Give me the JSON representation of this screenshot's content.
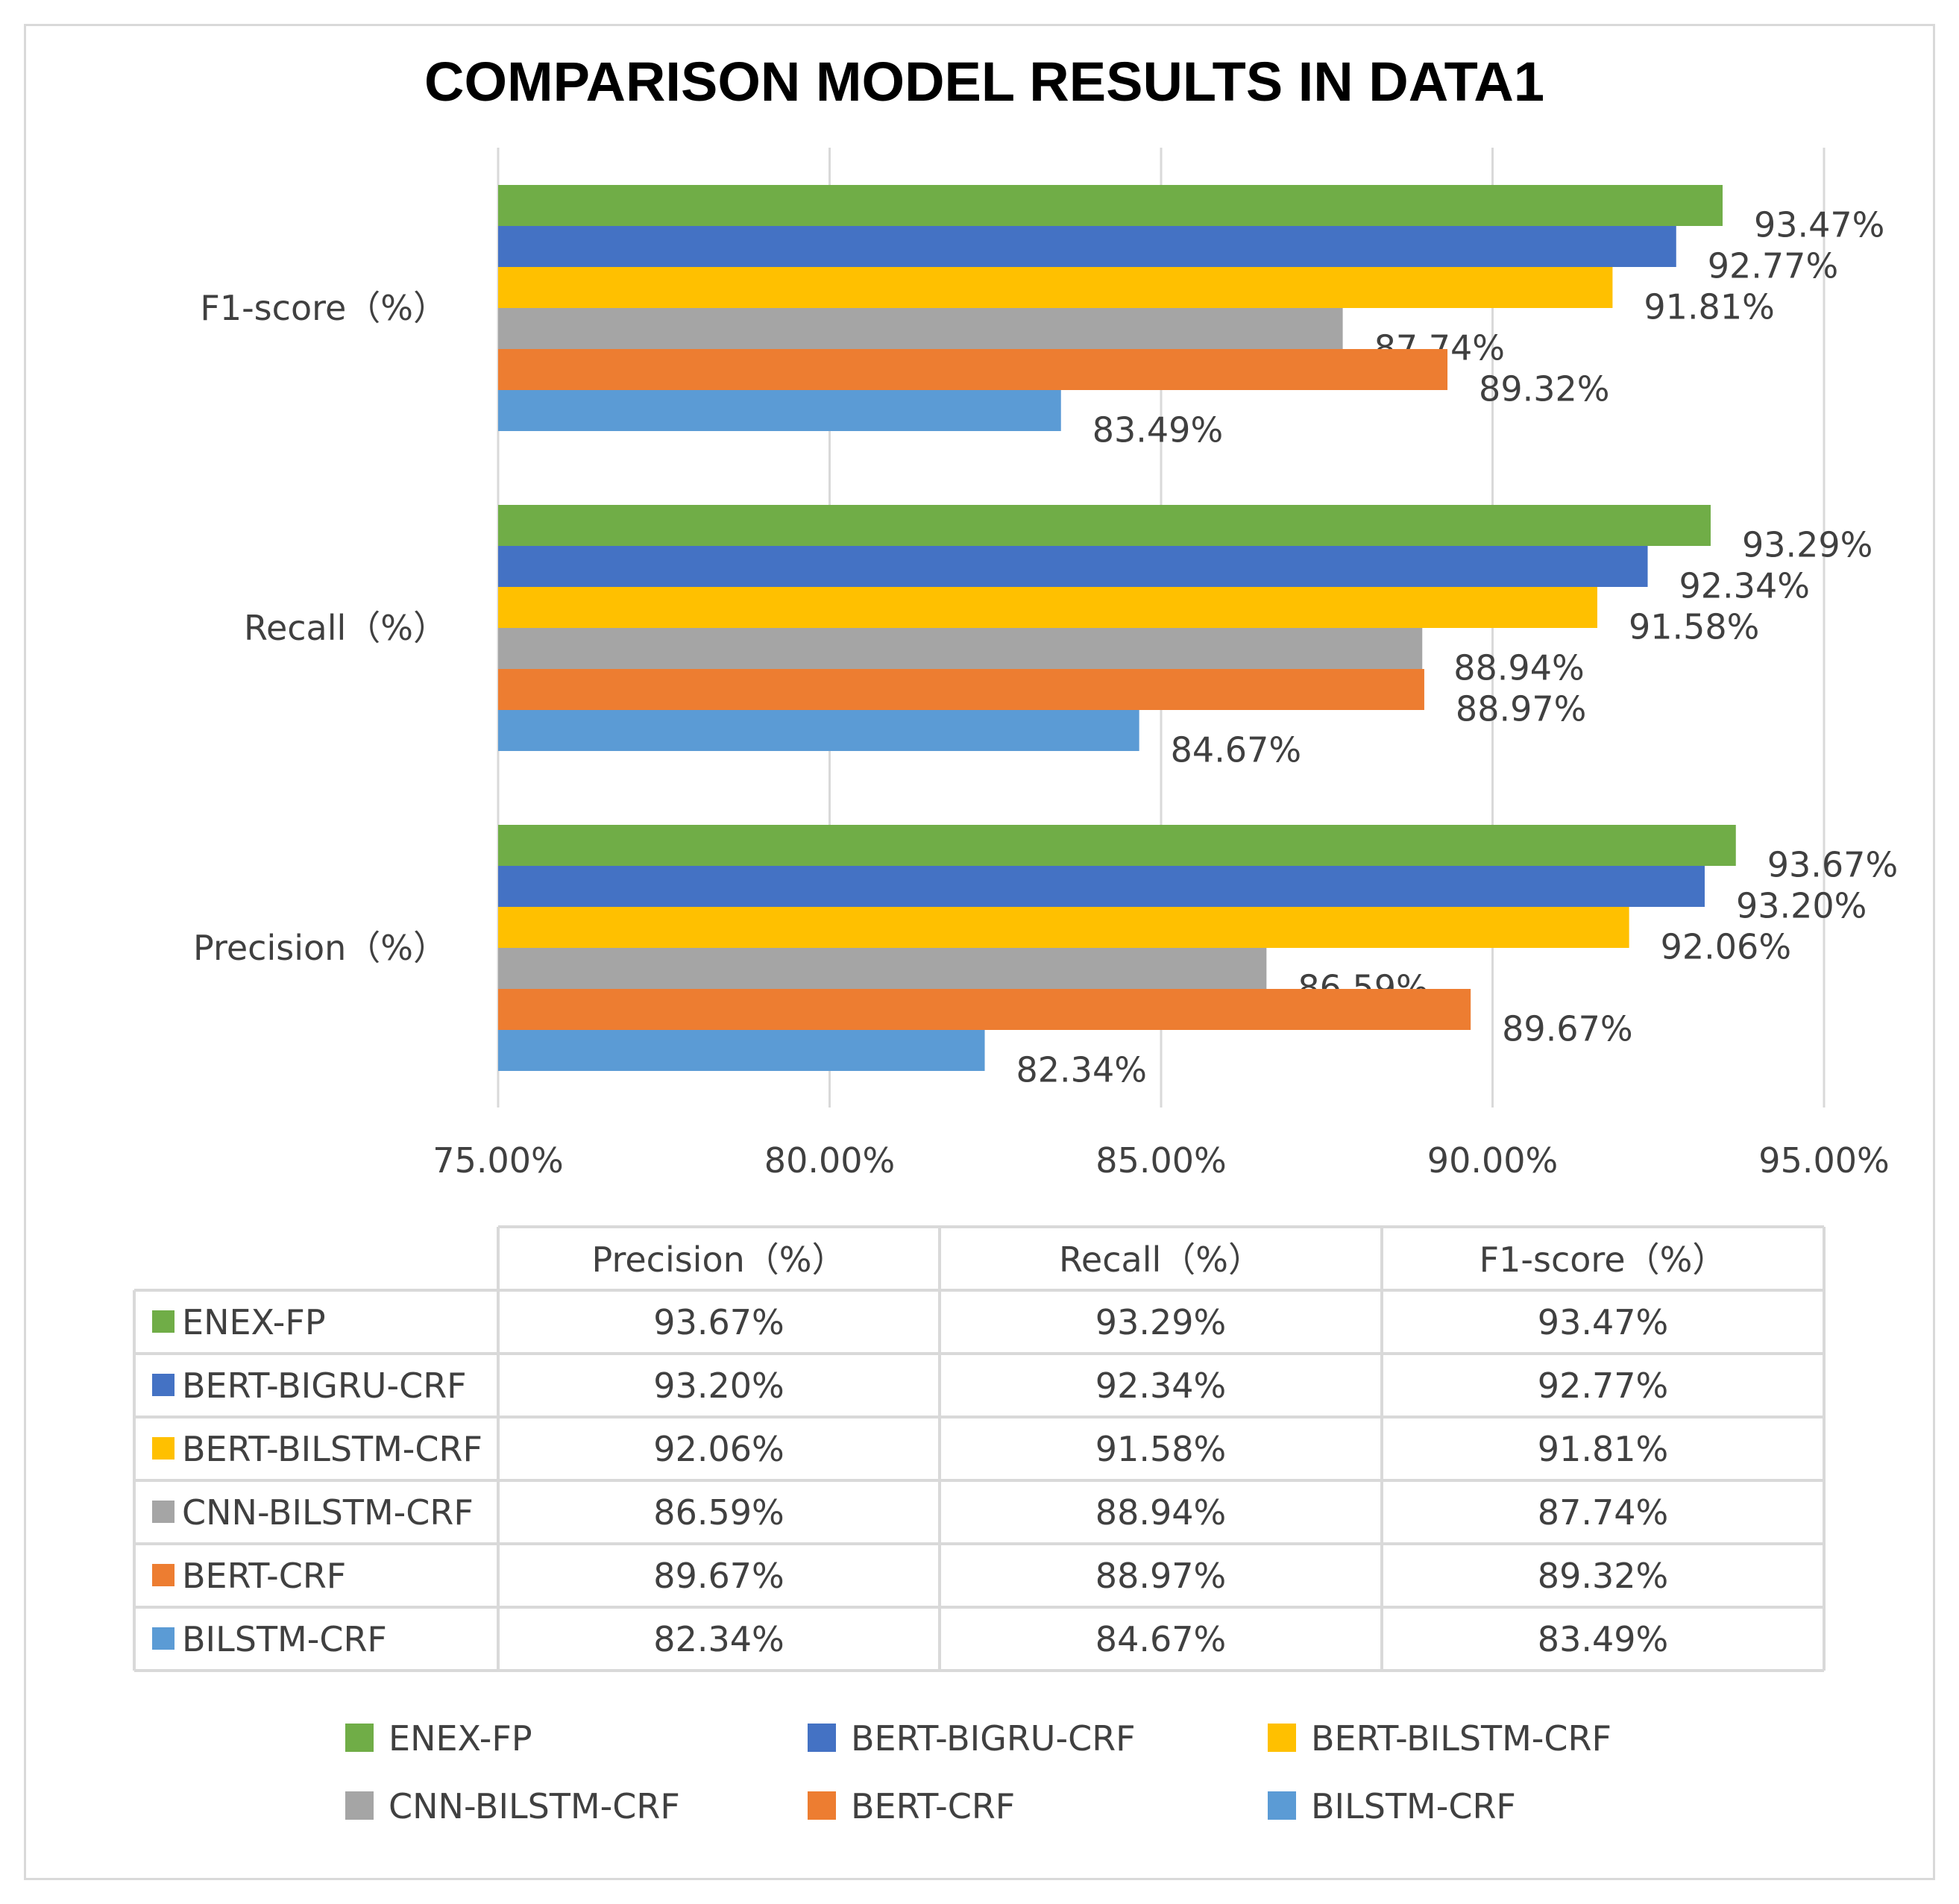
{
  "chart_data": {
    "type": "bar",
    "orientation": "horizontal",
    "title": "COMPARISON MODEL RESULTS IN DATA1",
    "categories": [
      "F1-score（%）",
      "Recall（%）",
      "Precision（%）"
    ],
    "series": [
      {
        "name": "ENEX-FP",
        "color": "#70ad47",
        "values": [
          93.47,
          93.29,
          93.67
        ],
        "labels": [
          "93.47%",
          "93.29%",
          "93.67%"
        ]
      },
      {
        "name": "BERT-BIGRU-CRF",
        "color": "#4472c4",
        "values": [
          92.77,
          92.34,
          93.2
        ],
        "labels": [
          "92.77%",
          "92.34%",
          "93.20%"
        ]
      },
      {
        "name": "BERT-BILSTM-CRF",
        "color": "#ffc000",
        "values": [
          91.81,
          91.58,
          92.06
        ],
        "labels": [
          "91.81%",
          "91.58%",
          "92.06%"
        ]
      },
      {
        "name": "CNN-BILSTM-CRF",
        "color": "#a5a5a5",
        "values": [
          87.74,
          88.94,
          86.59
        ],
        "labels": [
          "87.74%",
          "88.94%",
          "86.59%"
        ]
      },
      {
        "name": "BERT-CRF",
        "color": "#ed7d31",
        "values": [
          89.32,
          88.97,
          89.67
        ],
        "labels": [
          "89.32%",
          "88.97%",
          "89.67%"
        ]
      },
      {
        "name": "BILSTM-CRF",
        "color": "#5b9bd5",
        "values": [
          83.49,
          84.67,
          82.34
        ],
        "labels": [
          "83.49%",
          "84.67%",
          "82.34%"
        ]
      }
    ],
    "xlim": [
      75,
      95
    ],
    "xticks": [
      75,
      80,
      85,
      90,
      95
    ],
    "xtick_labels": [
      "75.00%",
      "80.00%",
      "85.00%",
      "90.00%",
      "95.00%"
    ],
    "grid": "vertical",
    "legend": "bottom",
    "data_table": {
      "headers": [
        "Precision（%）",
        "Recall（%）",
        "F1-score（%）"
      ],
      "rows": [
        {
          "model": "ENEX-FP",
          "color": "#70ad47",
          "cells": [
            "93.67%",
            "93.29%",
            "93.47%"
          ]
        },
        {
          "model": "BERT-BIGRU-CRF",
          "color": "#4472c4",
          "cells": [
            "93.20%",
            "92.34%",
            "92.77%"
          ]
        },
        {
          "model": "BERT-BILSTM-CRF",
          "color": "#ffc000",
          "cells": [
            "92.06%",
            "91.58%",
            "91.81%"
          ]
        },
        {
          "model": "CNN-BILSTM-CRF",
          "color": "#a5a5a5",
          "cells": [
            "86.59%",
            "88.94%",
            "87.74%"
          ]
        },
        {
          "model": "BERT-CRF",
          "color": "#ed7d31",
          "cells": [
            "89.67%",
            "88.97%",
            "89.32%"
          ]
        },
        {
          "model": "BILSTM-CRF",
          "color": "#5b9bd5",
          "cells": [
            "82.34%",
            "84.67%",
            "83.49%"
          ]
        }
      ]
    }
  }
}
